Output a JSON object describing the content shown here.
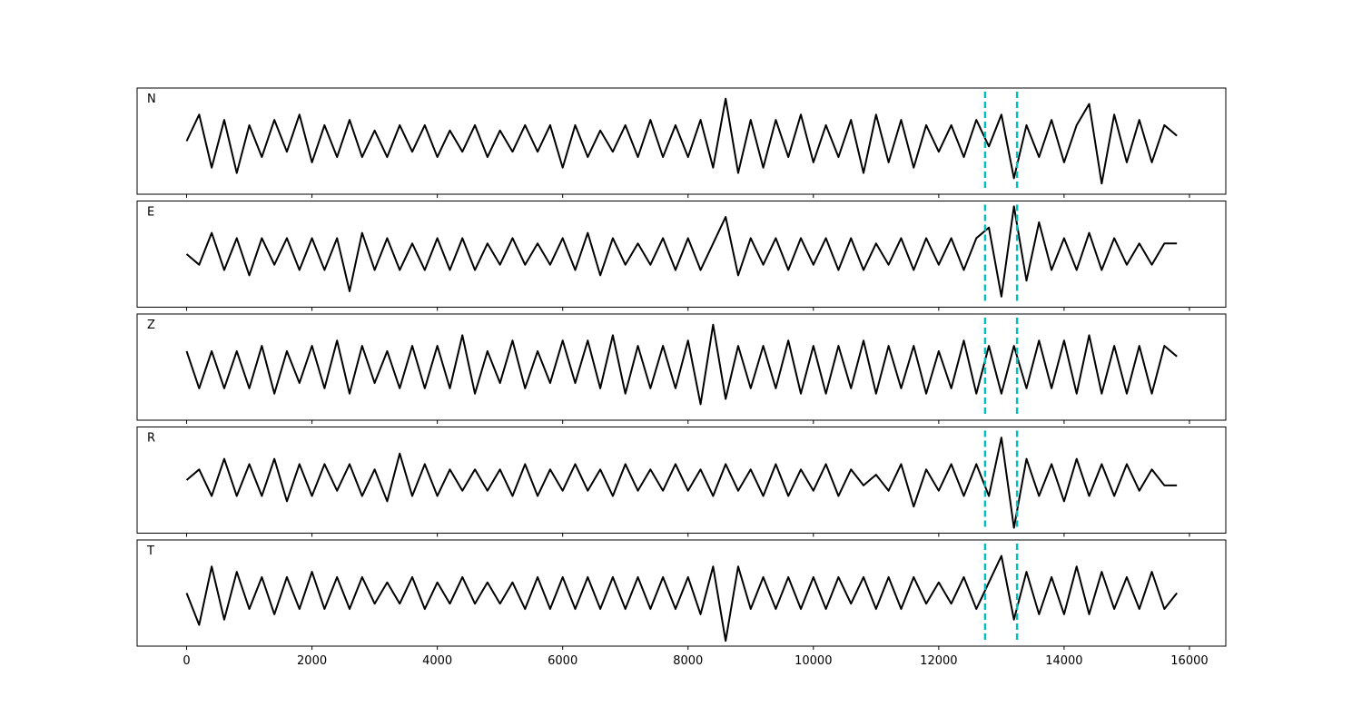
{
  "chart_data": {
    "type": "line",
    "layout": "stacked",
    "x": [
      0,
      200,
      400,
      600,
      800,
      1000,
      1200,
      1400,
      1600,
      1800,
      2000,
      2200,
      2400,
      2600,
      2800,
      3000,
      3200,
      3400,
      3600,
      3800,
      4000,
      4200,
      4400,
      4600,
      4800,
      5000,
      5200,
      5400,
      5600,
      5800,
      6000,
      6200,
      6400,
      6600,
      6800,
      7000,
      7200,
      7400,
      7600,
      7800,
      8000,
      8200,
      8400,
      8600,
      8800,
      9000,
      9200,
      9400,
      9600,
      9800,
      10000,
      10200,
      10400,
      10600,
      10800,
      11000,
      11200,
      11400,
      11600,
      11800,
      12000,
      12200,
      12400,
      12600,
      12800,
      13000,
      13200,
      13400,
      13600,
      13800,
      14000,
      14200,
      14400,
      14600,
      14800,
      15000,
      15200,
      15400,
      15600,
      15800
    ],
    "series": [
      {
        "name": "N",
        "color": "#000000",
        "values": [
          0.0,
          0.5,
          -0.5,
          0.4,
          -0.6,
          0.3,
          -0.3,
          0.4,
          -0.2,
          0.5,
          -0.4,
          0.3,
          -0.3,
          0.4,
          -0.3,
          0.2,
          -0.3,
          0.3,
          -0.2,
          0.3,
          -0.3,
          0.2,
          -0.2,
          0.3,
          -0.3,
          0.2,
          -0.2,
          0.3,
          -0.2,
          0.3,
          -0.5,
          0.3,
          -0.3,
          0.2,
          -0.2,
          0.3,
          -0.3,
          0.4,
          -0.3,
          0.3,
          -0.3,
          0.4,
          -0.5,
          0.8,
          -0.6,
          0.4,
          -0.5,
          0.4,
          -0.3,
          0.5,
          -0.4,
          0.3,
          -0.3,
          0.4,
          -0.6,
          0.5,
          -0.4,
          0.4,
          -0.5,
          0.3,
          -0.2,
          0.3,
          -0.3,
          0.4,
          -0.1,
          0.5,
          -0.7,
          0.3,
          -0.3,
          0.4,
          -0.4,
          0.3,
          0.7,
          -0.8,
          0.5,
          -0.4,
          0.4,
          -0.4,
          0.3,
          0.1
        ]
      },
      {
        "name": "E",
        "color": "#000000",
        "values": [
          0.0,
          -0.2,
          0.4,
          -0.3,
          0.3,
          -0.4,
          0.3,
          -0.2,
          0.3,
          -0.3,
          0.3,
          -0.3,
          0.3,
          -0.7,
          0.4,
          -0.3,
          0.3,
          -0.3,
          0.2,
          -0.3,
          0.3,
          -0.3,
          0.3,
          -0.3,
          0.2,
          -0.2,
          0.3,
          -0.2,
          0.2,
          -0.2,
          0.3,
          -0.3,
          0.4,
          -0.4,
          0.3,
          -0.2,
          0.2,
          -0.2,
          0.3,
          -0.3,
          0.3,
          -0.3,
          0.2,
          0.7,
          -0.4,
          0.3,
          -0.2,
          0.3,
          -0.3,
          0.3,
          -0.2,
          0.3,
          -0.3,
          0.3,
          -0.3,
          0.2,
          -0.2,
          0.3,
          -0.3,
          0.3,
          -0.2,
          0.3,
          -0.3,
          0.3,
          0.5,
          -0.8,
          0.9,
          -0.5,
          0.6,
          -0.3,
          0.3,
          -0.3,
          0.4,
          -0.3,
          0.3,
          -0.2,
          0.2,
          -0.2,
          0.2,
          0.2
        ]
      },
      {
        "name": "Z",
        "color": "#000000",
        "values": [
          0.3,
          -0.4,
          0.3,
          -0.4,
          0.3,
          -0.4,
          0.4,
          -0.5,
          0.3,
          -0.3,
          0.4,
          -0.4,
          0.5,
          -0.5,
          0.4,
          -0.3,
          0.3,
          -0.4,
          0.4,
          -0.4,
          0.4,
          -0.4,
          0.6,
          -0.5,
          0.3,
          -0.3,
          0.5,
          -0.4,
          0.3,
          -0.3,
          0.5,
          -0.3,
          0.5,
          -0.4,
          0.6,
          -0.5,
          0.4,
          -0.4,
          0.4,
          -0.4,
          0.5,
          -0.7,
          0.8,
          -0.6,
          0.4,
          -0.4,
          0.4,
          -0.4,
          0.5,
          -0.5,
          0.4,
          -0.5,
          0.4,
          -0.4,
          0.5,
          -0.5,
          0.4,
          -0.4,
          0.4,
          -0.5,
          0.3,
          -0.4,
          0.5,
          -0.5,
          0.4,
          -0.5,
          0.4,
          -0.4,
          0.5,
          -0.4,
          0.5,
          -0.5,
          0.6,
          -0.5,
          0.4,
          -0.5,
          0.4,
          -0.5,
          0.4,
          0.2
        ]
      },
      {
        "name": "R",
        "color": "#000000",
        "values": [
          0.0,
          0.2,
          -0.3,
          0.4,
          -0.3,
          0.3,
          -0.3,
          0.4,
          -0.4,
          0.3,
          -0.3,
          0.3,
          -0.2,
          0.3,
          -0.3,
          0.2,
          -0.4,
          0.5,
          -0.3,
          0.3,
          -0.3,
          0.2,
          -0.2,
          0.2,
          -0.2,
          0.2,
          -0.3,
          0.3,
          -0.3,
          0.2,
          -0.2,
          0.3,
          -0.2,
          0.2,
          -0.3,
          0.3,
          -0.2,
          0.2,
          -0.2,
          0.3,
          -0.2,
          0.2,
          -0.3,
          0.3,
          -0.2,
          0.2,
          -0.3,
          0.3,
          -0.3,
          0.2,
          -0.2,
          0.3,
          -0.3,
          0.2,
          -0.1,
          0.1,
          -0.2,
          0.3,
          -0.5,
          0.2,
          -0.2,
          0.3,
          -0.3,
          0.3,
          -0.3,
          0.8,
          -0.9,
          0.4,
          -0.3,
          0.3,
          -0.4,
          0.4,
          -0.3,
          0.3,
          -0.3,
          0.3,
          -0.2,
          0.2,
          -0.1,
          -0.1
        ]
      },
      {
        "name": "T",
        "color": "#000000",
        "values": [
          0.0,
          -0.6,
          0.5,
          -0.5,
          0.4,
          -0.3,
          0.3,
          -0.4,
          0.3,
          -0.3,
          0.4,
          -0.3,
          0.3,
          -0.3,
          0.3,
          -0.2,
          0.2,
          -0.2,
          0.3,
          -0.3,
          0.2,
          -0.2,
          0.3,
          -0.2,
          0.2,
          -0.2,
          0.2,
          -0.3,
          0.3,
          -0.3,
          0.3,
          -0.3,
          0.3,
          -0.3,
          0.3,
          -0.3,
          0.3,
          -0.3,
          0.3,
          -0.3,
          0.3,
          -0.4,
          0.5,
          -0.9,
          0.5,
          -0.3,
          0.3,
          -0.3,
          0.3,
          -0.3,
          0.3,
          -0.3,
          0.3,
          -0.2,
          0.3,
          -0.3,
          0.3,
          -0.3,
          0.3,
          -0.2,
          0.2,
          -0.2,
          0.3,
          -0.3,
          0.2,
          0.7,
          -0.5,
          0.4,
          -0.4,
          0.3,
          -0.4,
          0.5,
          -0.4,
          0.4,
          -0.3,
          0.3,
          -0.3,
          0.4,
          -0.3,
          0.0
        ]
      }
    ],
    "xlim": [
      -790,
      16580
    ],
    "xticks": [
      0,
      2000,
      4000,
      6000,
      8000,
      10000,
      12000,
      14000,
      16000
    ],
    "ylim": [
      -1,
      1
    ],
    "markers": [
      12740,
      13250
    ],
    "marker_color": "#00bfbf",
    "marker_style": "dashed"
  }
}
